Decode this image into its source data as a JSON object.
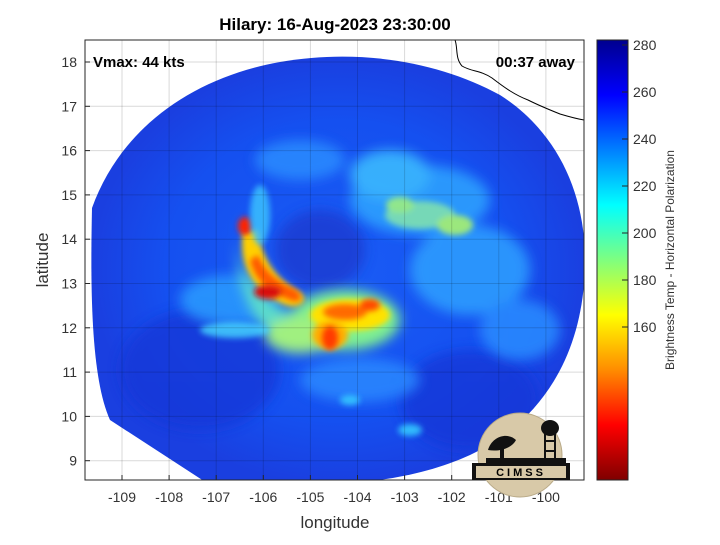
{
  "title": "Hilary: 16-Aug-2023 23:30:00",
  "vmax_label": "Vmax: 44 kts",
  "time_label": "00:37 away",
  "x_axis": {
    "label": "longitude",
    "ticks": [
      "-109",
      "-108",
      "-107",
      "-106",
      "-105",
      "-104",
      "-103",
      "-102",
      "-101",
      "-100"
    ]
  },
  "y_axis": {
    "label": "latitude",
    "ticks": [
      "18",
      "17",
      "16",
      "15",
      "14",
      "13",
      "12",
      "11",
      "10",
      "9"
    ]
  },
  "colorbar": {
    "label": "Brightness Temp - Horizontal Polarization",
    "ticks": [
      "280",
      "260",
      "240",
      "220",
      "200",
      "180",
      "160"
    ],
    "colors": [
      "#7f0000",
      "#ff0000",
      "#ff8c00",
      "#ffff00",
      "#7fff7f",
      "#00ffff",
      "#0080ff",
      "#0000ff",
      "#00008f"
    ]
  },
  "logo_text": "CIMSS",
  "storm_center": {
    "lon": -104.7,
    "lat": 12.3
  }
}
